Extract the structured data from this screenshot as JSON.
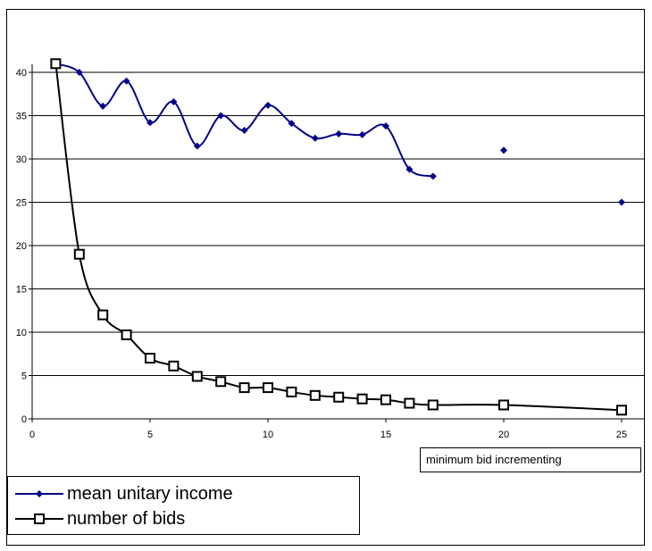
{
  "chart_data": {
    "type": "line",
    "xlabel": "minimum bid incrementing",
    "ylabel": "",
    "xlim": [
      0,
      25
    ],
    "ylim": [
      0,
      40
    ],
    "xticks": [
      0,
      5,
      10,
      15,
      20,
      25
    ],
    "yticks": [
      0,
      5,
      10,
      15,
      20,
      25,
      30,
      35,
      40
    ],
    "grid": "horizontal",
    "legend_position": "bottom-left",
    "series": [
      {
        "name": "mean unitary income",
        "color": "#00008B",
        "marker": "diamond",
        "x": [
          1,
          2,
          3,
          4,
          5,
          6,
          7,
          8,
          9,
          10,
          11,
          12,
          13,
          14,
          15,
          16,
          17,
          20,
          25
        ],
        "y": [
          41,
          40,
          36.1,
          39,
          34.2,
          36.6,
          31.5,
          35,
          33.3,
          36.2,
          34.1,
          32.4,
          32.9,
          32.8,
          33.8,
          28.8,
          28,
          31,
          25
        ],
        "connected_through_index": 16
      },
      {
        "name": "number of bids",
        "color": "#000000",
        "marker": "square",
        "x": [
          1,
          2,
          3,
          4,
          5,
          6,
          7,
          8,
          9,
          10,
          11,
          12,
          13,
          14,
          15,
          16,
          17,
          20,
          25
        ],
        "y": [
          41,
          19,
          12,
          9.7,
          7,
          6.1,
          4.9,
          4.3,
          3.6,
          3.6,
          3.1,
          2.7,
          2.5,
          2.3,
          2.2,
          1.8,
          1.6,
          1.6,
          1
        ],
        "connected_through_index": 18
      }
    ]
  }
}
